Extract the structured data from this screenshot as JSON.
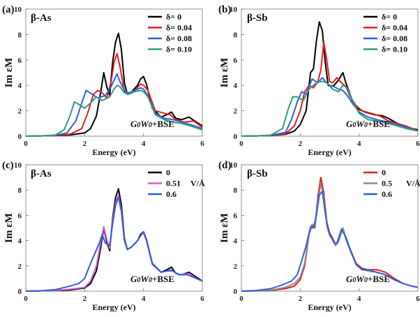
{
  "chart_data": [
    {
      "type": "line",
      "panel_label": "(a)",
      "title": "β-As",
      "xlabel": "Energy (eV)",
      "ylabel": "Im εM",
      "xlim": [
        0,
        6
      ],
      "ylim": [
        0,
        10
      ],
      "xticks": [
        "0",
        "2",
        "4",
        "6"
      ],
      "yticks": [
        "0",
        "2",
        "4",
        "6",
        "8",
        "10"
      ],
      "annotation": {
        "main": "G0W0",
        "suffix": "+BSE"
      },
      "legend_unit": "",
      "series": [
        {
          "name": "δ= 0",
          "color": "#000000",
          "x": [
            0,
            0.5,
            1.0,
            1.5,
            2.0,
            2.2,
            2.4,
            2.55,
            2.65,
            2.75,
            2.85,
            2.95,
            3.05,
            3.15,
            3.25,
            3.35,
            3.45,
            3.6,
            3.8,
            3.9,
            4.0,
            4.1,
            4.3,
            4.6,
            4.8,
            4.95,
            5.1,
            5.3,
            5.55,
            5.8,
            6.0
          ],
          "y": [
            0,
            0.02,
            0.05,
            0.1,
            0.25,
            0.6,
            1.6,
            3.5,
            5.0,
            3.9,
            3.2,
            5.8,
            7.4,
            8.1,
            6.8,
            4.2,
            3.3,
            3.5,
            4.0,
            4.5,
            4.7,
            4.1,
            2.2,
            1.5,
            1.7,
            1.9,
            1.4,
            1.3,
            1.5,
            1.1,
            0.8
          ]
        },
        {
          "name": "δ= 0.04",
          "color": "#e81c1c",
          "x": [
            0,
            0.5,
            1.0,
            1.5,
            1.9,
            2.1,
            2.3,
            2.45,
            2.6,
            2.75,
            2.9,
            3.0,
            3.1,
            3.2,
            3.35,
            3.5,
            3.7,
            3.9,
            4.0,
            4.15,
            4.4,
            4.7,
            4.9,
            5.1,
            5.4,
            5.7,
            6.0
          ],
          "y": [
            0,
            0.02,
            0.05,
            0.15,
            0.6,
            1.8,
            3.3,
            3.6,
            3.4,
            3.0,
            4.3,
            5.8,
            6.5,
            5.5,
            3.5,
            3.3,
            3.6,
            4.1,
            4.0,
            3.6,
            2.0,
            1.8,
            1.7,
            1.3,
            1.1,
            1.2,
            0.7
          ]
        },
        {
          "name": "δ= 0.08",
          "color": "#2f5fe0",
          "x": [
            0,
            0.5,
            1.0,
            1.4,
            1.7,
            1.9,
            2.05,
            2.25,
            2.45,
            2.7,
            2.9,
            3.0,
            3.1,
            3.2,
            3.35,
            3.5,
            3.7,
            3.9,
            4.0,
            4.15,
            4.4,
            4.7,
            5.0,
            5.3,
            5.6,
            6.0
          ],
          "y": [
            0,
            0.02,
            0.07,
            0.25,
            1.2,
            2.6,
            3.6,
            3.3,
            3.0,
            3.2,
            3.9,
            4.4,
            4.9,
            4.3,
            3.6,
            3.4,
            3.6,
            3.8,
            3.7,
            3.2,
            1.8,
            1.4,
            1.3,
            1.1,
            0.9,
            0.6
          ]
        },
        {
          "name": "δ= 0.10",
          "color": "#2e9e78",
          "x": [
            0,
            0.5,
            1.0,
            1.3,
            1.5,
            1.65,
            1.8,
            2.0,
            2.2,
            2.4,
            2.6,
            2.85,
            3.0,
            3.1,
            3.2,
            3.35,
            3.5,
            3.7,
            3.9,
            4.0,
            4.15,
            4.4,
            4.7,
            5.0,
            5.3,
            5.6,
            6.0
          ],
          "y": [
            0,
            0.02,
            0.08,
            0.5,
            1.6,
            2.7,
            2.5,
            2.2,
            2.6,
            3.1,
            2.8,
            3.1,
            3.7,
            4.0,
            3.9,
            3.4,
            3.3,
            3.5,
            3.6,
            3.5,
            3.1,
            1.7,
            1.3,
            1.1,
            1.0,
            0.8,
            0.5
          ]
        }
      ]
    },
    {
      "type": "line",
      "panel_label": "(b)",
      "title": "β-Sb",
      "xlabel": "Energy (eV)",
      "ylabel": "Im εM",
      "xlim": [
        0,
        6
      ],
      "ylim": [
        0,
        10
      ],
      "xticks": [
        "0",
        "2",
        "4",
        "6"
      ],
      "yticks": [
        "0",
        "2",
        "4",
        "6",
        "8",
        "10"
      ],
      "annotation": {
        "main": "G0W0",
        "suffix": "+BSE"
      },
      "legend_unit": "",
      "series": [
        {
          "name": "δ= 0",
          "color": "#000000",
          "x": [
            0,
            0.5,
            1.0,
            1.5,
            1.8,
            2.0,
            2.2,
            2.35,
            2.45,
            2.55,
            2.65,
            2.75,
            2.85,
            2.95,
            3.05,
            3.15,
            3.3,
            3.45,
            3.55,
            3.65,
            3.8,
            4.0,
            4.2,
            4.5,
            4.8,
            5.0,
            5.3,
            5.6,
            6.0
          ],
          "y": [
            0,
            0.02,
            0.05,
            0.15,
            0.4,
            0.9,
            2.0,
            5.0,
            5.3,
            7.5,
            9.0,
            8.3,
            5.8,
            4.0,
            3.9,
            4.0,
            4.4,
            5.0,
            4.2,
            3.6,
            2.6,
            2.1,
            1.9,
            1.7,
            1.6,
            1.4,
            1.0,
            0.7,
            0.5
          ]
        },
        {
          "name": "δ= 0.04",
          "color": "#e81c1c",
          "x": [
            0,
            0.5,
            1.0,
            1.5,
            1.8,
            2.0,
            2.15,
            2.3,
            2.45,
            2.6,
            2.7,
            2.8,
            2.9,
            3.0,
            3.1,
            3.25,
            3.4,
            3.55,
            3.7,
            3.9,
            4.1,
            4.4,
            4.7,
            5.0,
            5.3,
            5.6,
            6.0
          ],
          "y": [
            0,
            0.02,
            0.05,
            0.2,
            0.8,
            2.0,
            3.5,
            4.0,
            3.8,
            4.3,
            5.2,
            7.4,
            6.0,
            4.3,
            4.2,
            4.6,
            4.2,
            3.9,
            3.1,
            2.4,
            2.0,
            1.8,
            1.6,
            1.2,
            1.0,
            0.8,
            0.4
          ]
        },
        {
          "name": "δ= 0.08",
          "color": "#2f5fe0",
          "x": [
            0,
            0.5,
            1.0,
            1.5,
            1.7,
            1.9,
            2.05,
            2.2,
            2.4,
            2.6,
            2.75,
            2.85,
            3.0,
            3.15,
            3.3,
            3.45,
            3.6,
            3.8,
            4.0,
            4.3,
            4.6,
            5.0,
            5.3,
            5.6,
            6.0
          ],
          "y": [
            0,
            0.02,
            0.06,
            0.3,
            1.3,
            2.7,
            3.5,
            3.3,
            4.5,
            4.2,
            4.6,
            4.3,
            4.0,
            3.9,
            3.7,
            3.6,
            3.2,
            2.5,
            1.9,
            1.5,
            1.3,
            1.1,
            0.9,
            0.7,
            0.4
          ]
        },
        {
          "name": "δ= 0.10",
          "color": "#2e9e78",
          "x": [
            0,
            0.5,
            1.0,
            1.4,
            1.6,
            1.75,
            1.9,
            2.1,
            2.3,
            2.5,
            2.65,
            2.8,
            2.95,
            3.1,
            3.3,
            3.45,
            3.6,
            3.8,
            4.0,
            4.3,
            4.6,
            5.0,
            5.3,
            5.6,
            6.0
          ],
          "y": [
            0,
            0.02,
            0.08,
            0.6,
            2.2,
            3.1,
            3.1,
            2.8,
            3.7,
            4.1,
            4.3,
            4.3,
            4.1,
            3.7,
            3.5,
            4.0,
            3.8,
            2.7,
            1.8,
            1.3,
            1.2,
            1.0,
            0.8,
            0.6,
            0.4
          ]
        }
      ]
    },
    {
      "type": "line",
      "panel_label": "(c)",
      "title": "β-As",
      "xlabel": "Energy (eV)",
      "ylabel": "Im εM",
      "xlim": [
        0,
        6
      ],
      "ylim": [
        0,
        10
      ],
      "xticks": [
        "0",
        "2",
        "4",
        "6"
      ],
      "yticks": [
        "0",
        "2",
        "4",
        "6",
        "8",
        "10"
      ],
      "annotation": {
        "main": "G0W0",
        "suffix": "+BSE"
      },
      "legend_unit": "V/Å",
      "series": [
        {
          "name": "0",
          "color": "#000000",
          "x": [
            0,
            0.5,
            1.0,
            1.5,
            2.0,
            2.2,
            2.4,
            2.55,
            2.65,
            2.75,
            2.85,
            2.95,
            3.05,
            3.15,
            3.25,
            3.35,
            3.45,
            3.6,
            3.8,
            3.9,
            4.0,
            4.1,
            4.3,
            4.6,
            4.8,
            4.95,
            5.1,
            5.3,
            5.55,
            5.8,
            6.0
          ],
          "y": [
            0,
            0.02,
            0.05,
            0.1,
            0.25,
            0.6,
            1.6,
            3.5,
            5.0,
            3.9,
            3.2,
            5.8,
            7.4,
            8.1,
            6.8,
            4.2,
            3.3,
            3.5,
            4.0,
            4.5,
            4.7,
            4.1,
            2.2,
            1.5,
            1.7,
            1.9,
            1.4,
            1.3,
            1.5,
            1.1,
            0.8
          ]
        },
        {
          "name": "0.51",
          "color": "#d35fd3",
          "x": [
            0,
            0.5,
            1.0,
            1.5,
            2.0,
            2.2,
            2.4,
            2.55,
            2.65,
            2.75,
            2.85,
            2.95,
            3.05,
            3.15,
            3.25,
            3.35,
            3.45,
            3.6,
            3.8,
            3.9,
            4.0,
            4.1,
            4.3,
            4.6,
            4.8,
            4.95,
            5.1,
            5.3,
            5.55,
            5.8,
            6.0
          ],
          "y": [
            0,
            0.02,
            0.06,
            0.15,
            0.3,
            0.8,
            2.0,
            3.9,
            5.1,
            4.1,
            3.4,
            5.6,
            7.0,
            7.6,
            6.4,
            4.1,
            3.3,
            3.5,
            4.0,
            4.4,
            4.6,
            4.0,
            2.1,
            1.5,
            1.6,
            1.7,
            1.4,
            1.3,
            1.4,
            1.0,
            0.8
          ]
        },
        {
          "name": "0.6",
          "color": "#2f5fe0",
          "x": [
            0,
            0.5,
            1.0,
            1.5,
            1.8,
            2.0,
            2.2,
            2.35,
            2.5,
            2.6,
            2.7,
            2.85,
            2.95,
            3.05,
            3.15,
            3.25,
            3.35,
            3.45,
            3.6,
            3.8,
            3.9,
            4.0,
            4.1,
            4.3,
            4.6,
            4.8,
            5.0,
            5.2,
            5.5,
            5.8,
            6.0
          ],
          "y": [
            0,
            0.03,
            0.12,
            0.4,
            0.6,
            1.0,
            2.2,
            3.0,
            3.8,
            4.5,
            3.8,
            3.6,
            5.3,
            6.8,
            7.4,
            6.3,
            4.0,
            3.3,
            3.5,
            4.0,
            4.4,
            4.7,
            4.1,
            2.2,
            1.5,
            1.6,
            1.6,
            1.3,
            1.3,
            1.0,
            0.8
          ]
        }
      ]
    },
    {
      "type": "line",
      "panel_label": "(d)",
      "title": "β-Sb",
      "xlabel": "Energy (eV)",
      "ylabel": "Im εM",
      "xlim": [
        0,
        6
      ],
      "ylim": [
        0,
        10
      ],
      "xticks": [
        "0",
        "2",
        "4",
        "6"
      ],
      "yticks": [
        "0",
        "2",
        "4",
        "6",
        "8",
        "10"
      ],
      "annotation": {
        "main": "G0W0",
        "suffix": "+BSE"
      },
      "legend_unit": "V/Å",
      "series": [
        {
          "name": "0",
          "color": "#e81c1c",
          "x": [
            0,
            0.5,
            1.0,
            1.5,
            1.8,
            2.0,
            2.15,
            2.3,
            2.4,
            2.5,
            2.6,
            2.7,
            2.8,
            2.9,
            3.0,
            3.1,
            3.2,
            3.3,
            3.45,
            3.55,
            3.7,
            3.9,
            4.1,
            4.3,
            4.6,
            4.9,
            5.2,
            5.5,
            5.8,
            6.0
          ],
          "y": [
            0,
            0.02,
            0.05,
            0.2,
            0.4,
            0.9,
            2.0,
            4.5,
            5.2,
            5.0,
            7.5,
            9.0,
            7.8,
            5.5,
            4.6,
            4.2,
            3.7,
            4.0,
            5.0,
            4.2,
            3.3,
            2.2,
            1.8,
            1.7,
            1.7,
            1.5,
            1.0,
            0.6,
            0.4,
            0.3
          ]
        },
        {
          "name": "0.5",
          "color": "#8a8a8a",
          "x": [
            0,
            0.5,
            1.0,
            1.5,
            1.8,
            2.0,
            2.15,
            2.3,
            2.4,
            2.5,
            2.6,
            2.7,
            2.8,
            2.9,
            3.0,
            3.1,
            3.2,
            3.3,
            3.45,
            3.55,
            3.7,
            3.9,
            4.1,
            4.3,
            4.6,
            4.9,
            5.2,
            5.5,
            5.8,
            6.0
          ],
          "y": [
            0,
            0.03,
            0.08,
            0.3,
            0.6,
            1.1,
            2.2,
            4.6,
            5.3,
            5.0,
            7.2,
            8.5,
            7.5,
            5.3,
            4.4,
            4.1,
            3.6,
            3.9,
            5.0,
            4.1,
            3.2,
            2.1,
            1.7,
            1.6,
            1.5,
            1.3,
            0.9,
            0.6,
            0.4,
            0.3
          ]
        },
        {
          "name": "0.6",
          "color": "#2f5fe0",
          "x": [
            0,
            0.5,
            1.0,
            1.4,
            1.7,
            1.9,
            2.05,
            2.2,
            2.35,
            2.45,
            2.55,
            2.65,
            2.75,
            2.85,
            2.95,
            3.05,
            3.15,
            3.25,
            3.4,
            3.55,
            3.7,
            3.9,
            4.1,
            4.3,
            4.6,
            4.9,
            5.2,
            5.5,
            5.8,
            6.0
          ],
          "y": [
            0,
            0.05,
            0.2,
            0.5,
            0.8,
            1.3,
            2.4,
            3.6,
            5.1,
            5.0,
            6.0,
            7.6,
            7.9,
            6.2,
            4.8,
            4.3,
            3.8,
            3.8,
            4.9,
            4.3,
            3.3,
            2.1,
            1.7,
            1.7,
            1.5,
            1.3,
            0.9,
            0.6,
            0.4,
            0.3
          ]
        }
      ]
    }
  ]
}
